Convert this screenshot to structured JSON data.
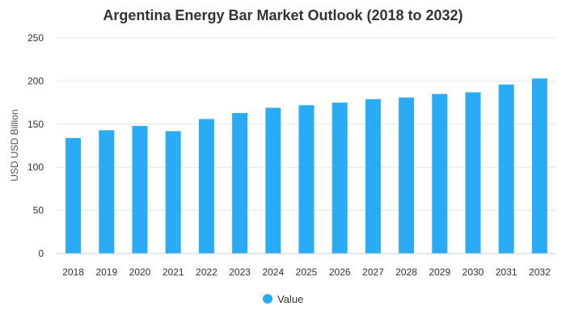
{
  "chart_data": {
    "type": "bar",
    "title": "Argentina Energy Bar Market Outlook (2018 to 2032)",
    "xlabel": "",
    "ylabel": "USD USD Billion",
    "ylim": [
      0,
      250
    ],
    "yticks": [
      0,
      50,
      100,
      150,
      200,
      250
    ],
    "grid": true,
    "legend_position": "bottom",
    "categories": [
      "2018",
      "2019",
      "2020",
      "2021",
      "2022",
      "2023",
      "2024",
      "2025",
      "2026",
      "2027",
      "2028",
      "2029",
      "2030",
      "2031",
      "2032"
    ],
    "series": [
      {
        "name": "Value",
        "color": "#29abf6",
        "values": [
          134,
          143,
          148,
          142,
          156,
          163,
          169,
          172,
          175,
          179,
          181,
          185,
          187,
          196,
          203
        ]
      }
    ]
  }
}
